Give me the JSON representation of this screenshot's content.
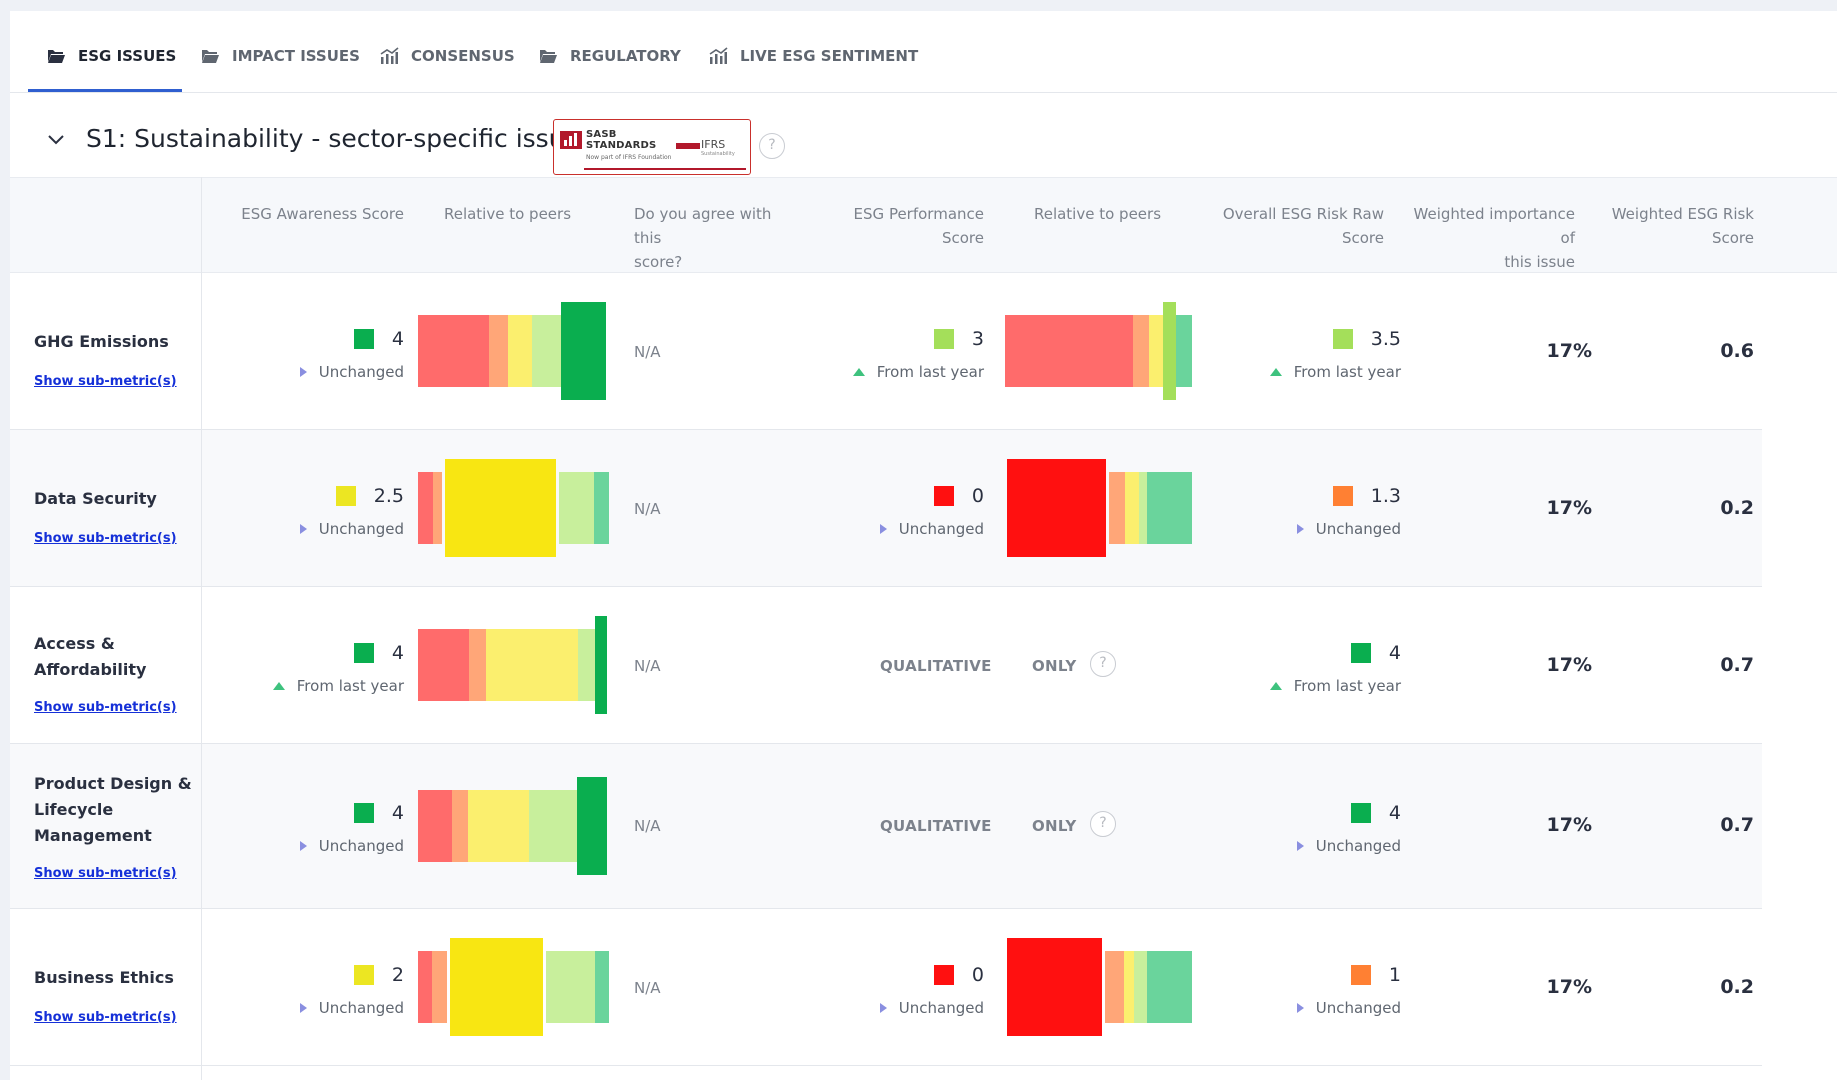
{
  "tabs": [
    {
      "label": "ESG ISSUES",
      "icon": "folder-open-icon",
      "active": true
    },
    {
      "label": "IMPACT ISSUES",
      "icon": "folder-open-icon",
      "active": false
    },
    {
      "label": "CONSENSUS",
      "icon": "bar-chart-icon",
      "active": false
    },
    {
      "label": "REGULATORY",
      "icon": "folder-open-icon",
      "active": false
    },
    {
      "label": "LIVE ESG SENTIMENT",
      "icon": "bar-chart-icon",
      "active": false
    }
  ],
  "section": {
    "title": "S1: Sustainability - sector-specific issues",
    "logo": {
      "line1": "SASB",
      "line2": "STANDARDS",
      "line3": "Now part of IFRS Foundation",
      "ifrs": "IFRS",
      "ifrs_sub": "Sustainability"
    },
    "help": "?"
  },
  "columns": {
    "awareness": "ESG Awareness Score",
    "relative1": "Relative to peers",
    "agree_1": "Do you agree with this",
    "agree_2": "score?",
    "performance": "ESG Performance Score",
    "relative2": "Relative to peers",
    "raw_1": "Overall ESG Risk Raw",
    "raw_2": "Score",
    "weight_1": "Weighted importance of",
    "weight_2": "this issue",
    "wrisk_1": "Weighted ESG Risk",
    "wrisk_2": "Score"
  },
  "colors": {
    "dark_green": "#0aae4f",
    "light_green": "#a4df5a",
    "yellow": "#ece622",
    "orange": "#ff8033",
    "red": "#ff1010",
    "trend_neutral": "#8a8fe0",
    "trend_up": "#3ec27e",
    "link": "#1530d8"
  },
  "sub_metric_label": "Show sub-metric(s)",
  "rows": [
    {
      "name": "GHG Emissions",
      "awareness": {
        "value": "4",
        "color": "#0aae4f",
        "trend": "Unchanged",
        "trend_dir": "neutral"
      },
      "agree": "N/A",
      "performance": {
        "value": "3",
        "color": "#a4df5a",
        "trend": "From last year",
        "trend_dir": "up"
      },
      "raw": {
        "value": "3.5",
        "color": "#a4df5a",
        "trend": "From last year",
        "trend_dir": "up"
      },
      "weight": "17%",
      "weighted_risk": "0.6"
    },
    {
      "name": "Data Security",
      "awareness": {
        "value": "2.5",
        "color": "#ece622",
        "trend": "Unchanged",
        "trend_dir": "neutral"
      },
      "agree": "N/A",
      "performance": {
        "value": "0",
        "color": "#ff1010",
        "trend": "Unchanged",
        "trend_dir": "neutral"
      },
      "raw": {
        "value": "1.3",
        "color": "#ff8033",
        "trend": "Unchanged",
        "trend_dir": "neutral"
      },
      "weight": "17%",
      "weighted_risk": "0.2"
    },
    {
      "name_1": "Access &",
      "name_2": "Affordability",
      "awareness": {
        "value": "4",
        "color": "#0aae4f",
        "trend": "From last year",
        "trend_dir": "up"
      },
      "agree": "N/A",
      "performance_text_1": "QUALITATIVE",
      "performance_text_2": "ONLY",
      "raw": {
        "value": "4",
        "color": "#0aae4f",
        "trend": "From last year",
        "trend_dir": "up"
      },
      "weight": "17%",
      "weighted_risk": "0.7"
    },
    {
      "name_1": "Product Design &",
      "name_2": "Lifecycle",
      "name_3": "Management",
      "awareness": {
        "value": "4",
        "color": "#0aae4f",
        "trend": "Unchanged",
        "trend_dir": "neutral"
      },
      "agree": "N/A",
      "performance_text_1": "QUALITATIVE",
      "performance_text_2": "ONLY",
      "raw": {
        "value": "4",
        "color": "#0aae4f",
        "trend": "Unchanged",
        "trend_dir": "neutral"
      },
      "weight": "17%",
      "weighted_risk": "0.7"
    },
    {
      "name": "Business Ethics",
      "awareness": {
        "value": "2",
        "color": "#ece622",
        "trend": "Unchanged",
        "trend_dir": "neutral"
      },
      "agree": "N/A",
      "performance": {
        "value": "0",
        "color": "#ff1010",
        "trend": "Unchanged",
        "trend_dir": "neutral"
      },
      "raw": {
        "value": "1",
        "color": "#ff8033",
        "trend": "Unchanged",
        "trend_dir": "neutral"
      },
      "weight": "17%",
      "weighted_risk": "0.2"
    }
  ]
}
